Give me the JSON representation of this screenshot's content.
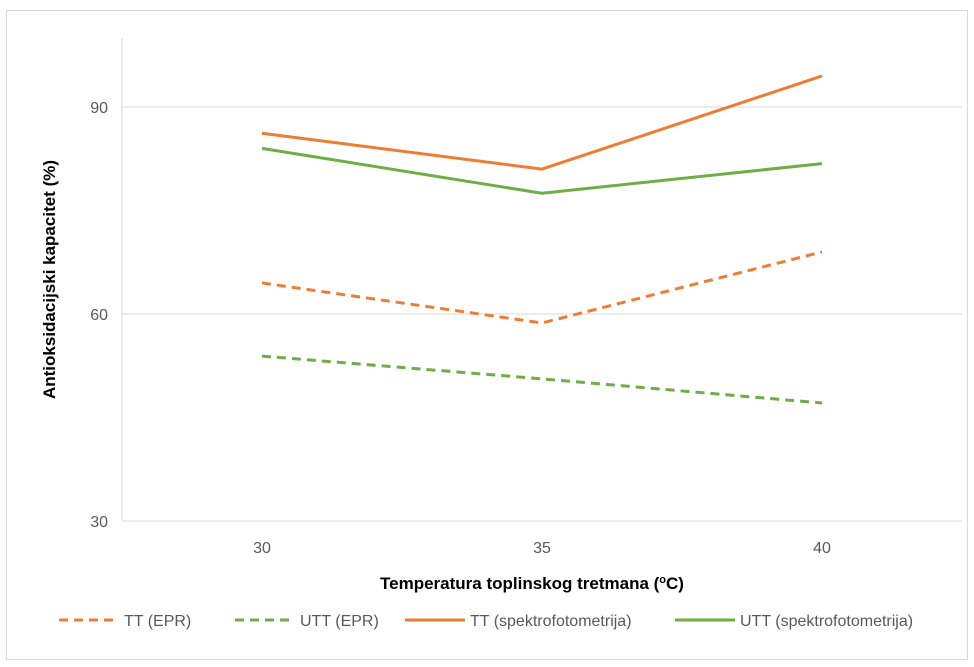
{
  "chart_data": {
    "type": "line",
    "xlabel": "Temperatura toplinskog tretmana (°C)",
    "xlabel_parts": {
      "before": "Temperatura toplinskog tretmana (",
      "sup": "o",
      "after": "C)"
    },
    "ylabel": "Antioksidacijski kapacitet (%)",
    "categories": [
      "30",
      "35",
      "40"
    ],
    "y_ticks": [
      30,
      60,
      90
    ],
    "ylim": [
      30,
      100
    ],
    "grid": true,
    "legend_position": "bottom",
    "series": [
      {
        "name": "TT (EPR)",
        "values": [
          64.5,
          58.7,
          69.0
        ],
        "color": "#ED7D31",
        "dash": true
      },
      {
        "name": "UTT (EPR)",
        "values": [
          53.9,
          50.6,
          47.1
        ],
        "color": "#70AD47",
        "dash": true
      },
      {
        "name": "TT (spektrofotometrija)",
        "values": [
          86.2,
          81.0,
          94.5
        ],
        "color": "#ED7D31",
        "dash": false
      },
      {
        "name": "UTT (spektrofotometrija)",
        "values": [
          84.0,
          77.5,
          81.8
        ],
        "color": "#70AD47",
        "dash": false
      }
    ]
  }
}
